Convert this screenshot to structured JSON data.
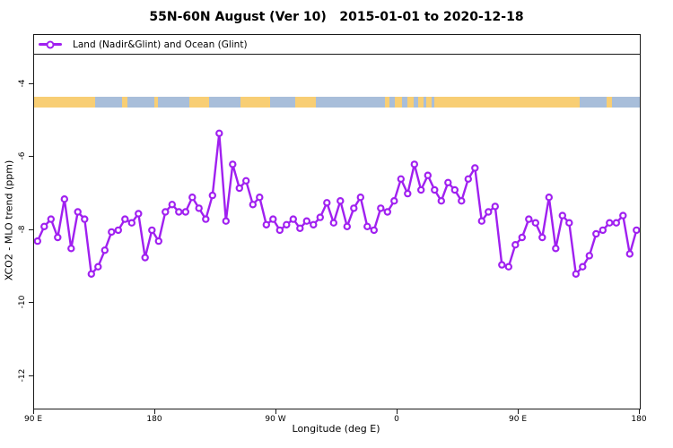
{
  "title": "55N-60N August (Ver 10)   2015-01-01 to 2020-12-18",
  "legend": {
    "label": "Land (Nadir&Glint) and Ocean (Glint)"
  },
  "colors": {
    "line": "#A020F0",
    "marker_fill": "#ffffff",
    "land": "#F8CE74",
    "ocean": "#A8BEDA",
    "axis": "#1a1a1a"
  },
  "map_strip": {
    "description": "land-ocean-map-band",
    "land_segments_lon": [
      [
        90,
        135.5
      ],
      [
        155.5,
        159
      ],
      [
        179,
        182
      ],
      [
        205.5,
        220
      ],
      [
        243.5,
        265.5
      ],
      [
        284,
        299.5
      ],
      [
        350.5,
        354
      ],
      [
        358,
        363.5
      ],
      [
        367.5,
        372
      ],
      [
        375,
        379.5
      ],
      [
        381.5,
        385
      ],
      [
        387,
        495.5
      ],
      [
        515.5,
        519
      ]
    ]
  },
  "chart_data": {
    "type": "line",
    "title": "55N-60N August (Ver 10)   2015-01-01 to 2020-12-18",
    "xlabel": "Longitude (deg E)",
    "ylabel": "XCO2 - MLO trend (ppm)",
    "xlim": [
      90,
      540
    ],
    "ylim": [
      -12.88,
      -2.66
    ],
    "grid": false,
    "legend_position": "top-full-width-box",
    "x_ticks": [
      {
        "value": 90,
        "label": "90 E"
      },
      {
        "value": 180,
        "label": "180"
      },
      {
        "value": 270,
        "label": "90 W"
      },
      {
        "value": 360,
        "label": "0"
      },
      {
        "value": 450,
        "label": "90 E"
      },
      {
        "value": 540,
        "label": "180"
      }
    ],
    "y_ticks": [
      {
        "value": -4,
        "label": "-4"
      },
      {
        "value": -6,
        "label": "-6"
      },
      {
        "value": -8,
        "label": "-8"
      },
      {
        "value": -10,
        "label": "-10"
      },
      {
        "value": -12,
        "label": "-12"
      }
    ],
    "series": [
      {
        "name": "Land (Nadir&Glint) and Ocean (Glint)",
        "color": "#A020F0",
        "marker": "open-circle",
        "x": [
          92.5,
          97.5,
          102.5,
          107.5,
          112.5,
          117.5,
          122.5,
          127.5,
          132.5,
          137.5,
          142.5,
          147.5,
          152.5,
          157.5,
          162.5,
          167.5,
          172.5,
          177.5,
          182.5,
          187.5,
          192.5,
          197.5,
          202.5,
          207.5,
          212.5,
          217.5,
          222.5,
          227.5,
          232.5,
          237.5,
          242.5,
          247.5,
          252.5,
          257.5,
          262.5,
          267.5,
          272.5,
          277.5,
          282.5,
          287.5,
          292.5,
          297.5,
          302.5,
          307.5,
          312.5,
          317.5,
          322.5,
          327.5,
          332.5,
          337.5,
          342.5,
          347.5,
          352.5,
          357.5,
          362.5,
          367.5,
          372.5,
          377.5,
          382.5,
          387.5,
          392.5,
          397.5,
          402.5,
          407.5,
          412.5,
          417.5,
          422.5,
          427.5,
          432.5,
          437.5,
          442.5,
          447.5,
          452.5,
          457.5,
          462.5,
          467.5,
          472.5,
          477.5,
          482.5,
          487.5,
          492.5,
          497.5,
          502.5,
          507.5,
          512.5,
          517.5,
          522.5,
          527.5,
          532.5,
          537.5
        ],
        "y": [
          -8.3,
          -7.9,
          -7.7,
          -8.2,
          -7.15,
          -8.5,
          -7.5,
          -7.7,
          -9.2,
          -9.0,
          -8.55,
          -8.05,
          -8.0,
          -7.7,
          -7.8,
          -7.55,
          -8.75,
          -8.0,
          -8.3,
          -7.5,
          -7.3,
          -7.5,
          -7.5,
          -7.1,
          -7.4,
          -7.7,
          -7.05,
          -5.35,
          -7.75,
          -6.2,
          -6.85,
          -6.65,
          -7.3,
          -7.1,
          -7.85,
          -7.7,
          -8.0,
          -7.85,
          -7.7,
          -7.95,
          -7.75,
          -7.85,
          -7.65,
          -7.25,
          -7.8,
          -7.2,
          -7.9,
          -7.4,
          -7.1,
          -7.9,
          -8.0,
          -7.4,
          -7.5,
          -7.2,
          -6.6,
          -7.0,
          -6.2,
          -6.9,
          -6.5,
          -6.9,
          -7.2,
          -6.7,
          -6.9,
          -7.2,
          -6.6,
          -6.3,
          -7.75,
          -7.5,
          -7.35,
          -8.95,
          -9.0,
          -8.4,
          -8.2,
          -7.7,
          -7.8,
          -8.2,
          -7.1,
          -8.5,
          -7.6,
          -7.8,
          -9.2,
          -9.0,
          -8.7,
          -8.1,
          -8.0,
          -7.8,
          -7.8,
          -7.6,
          -8.65,
          -8.0
        ]
      }
    ]
  }
}
